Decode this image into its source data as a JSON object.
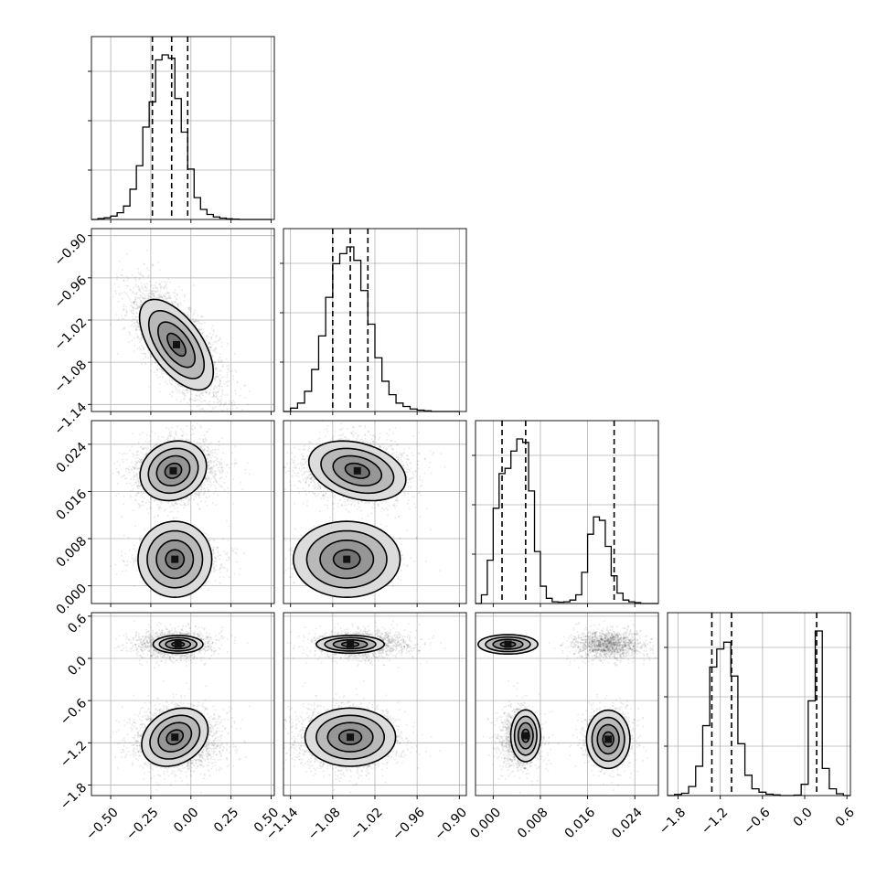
{
  "chart_data": {
    "type": "corner",
    "title": "",
    "parameters": [
      {
        "range": [
          -0.62,
          0.52
        ],
        "ticks": [
          -0.5,
          -0.25,
          0.0,
          0.25,
          0.5
        ],
        "tick_labels": [
          "−0.50",
          "−0.25",
          "0.00",
          "0.25",
          "0.50"
        ],
        "quantiles": [
          -0.24,
          -0.12,
          -0.02
        ],
        "histogram": {
          "bin_edges": [
            -0.62,
            -0.58,
            -0.54,
            -0.5,
            -0.46,
            -0.42,
            -0.38,
            -0.34,
            -0.3,
            -0.26,
            -0.22,
            -0.18,
            -0.14,
            -0.1,
            -0.06,
            -0.02,
            0.02,
            0.06,
            0.1,
            0.14,
            0.18,
            0.22,
            0.26,
            0.3,
            0.34,
            0.38,
            0.42,
            0.46,
            0.5
          ],
          "counts": [
            0,
            0.005,
            0.01,
            0.02,
            0.04,
            0.08,
            0.18,
            0.32,
            0.55,
            0.7,
            0.95,
            0.98,
            0.96,
            0.72,
            0.52,
            0.3,
            0.13,
            0.06,
            0.03,
            0.015,
            0.008,
            0.004,
            0.002,
            0,
            0,
            0,
            0,
            0
          ]
        }
      },
      {
        "range": [
          -1.15,
          -0.89
        ],
        "ticks": [
          -1.14,
          -1.08,
          -1.02,
          -0.96,
          -0.9
        ],
        "tick_labels": [
          "−1.14",
          "−1.08",
          "−1.02",
          "−0.96",
          "−0.90"
        ],
        "quantiles": [
          -1.08,
          -1.055,
          -1.03
        ],
        "histogram": {
          "bin_edges": [
            -1.15,
            -1.14,
            -1.13,
            -1.12,
            -1.11,
            -1.1,
            -1.09,
            -1.08,
            -1.07,
            -1.06,
            -1.05,
            -1.04,
            -1.03,
            -1.02,
            -1.01,
            -1.0,
            -0.99,
            -0.98,
            -0.97,
            -0.96,
            -0.95,
            -0.94,
            -0.93,
            -0.92,
            -0.91,
            -0.9
          ],
          "counts": [
            0,
            0.02,
            0.05,
            0.12,
            0.25,
            0.45,
            0.68,
            0.88,
            0.94,
            0.98,
            0.9,
            0.72,
            0.52,
            0.32,
            0.18,
            0.1,
            0.05,
            0.03,
            0.015,
            0.008,
            0.004,
            0,
            0,
            0,
            0
          ]
        }
      },
      {
        "range": [
          -0.003,
          0.028
        ],
        "ticks": [
          0.0,
          0.008,
          0.016,
          0.024
        ],
        "tick_labels": [
          "0.000",
          "0.008",
          "0.016",
          "0.024"
        ],
        "quantiles": [
          0.0015,
          0.0055,
          0.0205
        ],
        "histogram": {
          "bin_edges": [
            -0.003,
            -0.002,
            -0.001,
            0.0,
            0.001,
            0.002,
            0.003,
            0.004,
            0.005,
            0.006,
            0.007,
            0.008,
            0.009,
            0.01,
            0.011,
            0.012,
            0.013,
            0.014,
            0.015,
            0.016,
            0.017,
            0.018,
            0.019,
            0.02,
            0.021,
            0.022,
            0.023,
            0.024,
            0.025,
            0.026,
            0.027,
            0.028
          ],
          "counts": [
            0,
            0.05,
            0.25,
            0.55,
            0.75,
            0.78,
            0.88,
            0.95,
            0.93,
            0.65,
            0.3,
            0.1,
            0.03,
            0.01,
            0.008,
            0.01,
            0.02,
            0.05,
            0.18,
            0.4,
            0.5,
            0.48,
            0.33,
            0.16,
            0.06,
            0.02,
            0.01,
            0.005,
            0,
            0,
            0
          ]
        }
      },
      {
        "range": [
          -1.95,
          0.65
        ],
        "ticks": [
          -1.8,
          -1.2,
          -0.6,
          0.0,
          0.6
        ],
        "tick_labels": [
          "−1.8",
          "−1.2",
          "−0.6",
          "0.0",
          "0.6"
        ],
        "quantiles": [
          -1.32,
          -1.04,
          0.17
        ],
        "histogram": {
          "bin_edges": [
            -1.95,
            -1.85,
            -1.75,
            -1.65,
            -1.55,
            -1.45,
            -1.35,
            -1.25,
            -1.15,
            -1.05,
            -0.95,
            -0.85,
            -0.75,
            -0.65,
            -0.55,
            -0.45,
            -0.35,
            -0.25,
            -0.15,
            -0.05,
            0.05,
            0.15,
            0.25,
            0.35,
            0.45,
            0.55,
            0.65
          ],
          "counts": [
            0,
            0.005,
            0.01,
            0.04,
            0.13,
            0.31,
            0.57,
            0.65,
            0.68,
            0.53,
            0.23,
            0.09,
            0.03,
            0.015,
            0.006,
            0.003,
            0,
            0,
            0.002,
            0.05,
            0.42,
            0.73,
            0.12,
            0.03,
            0.008,
            0
          ]
        }
      }
    ],
    "modes": [
      {
        "fraction": 0.36,
        "mean": [
          -0.1,
          -1.04,
          0.0195,
          0.2
        ],
        "std": [
          0.12,
          0.035,
          0.003,
          0.1
        ]
      },
      {
        "fraction": 0.64,
        "mean": [
          -0.08,
          -1.06,
          0.0045,
          -1.15
        ],
        "std": [
          0.13,
          0.035,
          0.0035,
          0.22
        ]
      }
    ],
    "contour_levels_sigma": [
      0.5,
      1.0,
      1.5,
      2.0
    ],
    "grid": true,
    "colors": {
      "ink": "#000000",
      "grid": "#b0b0b0",
      "background": "#ffffff"
    }
  }
}
